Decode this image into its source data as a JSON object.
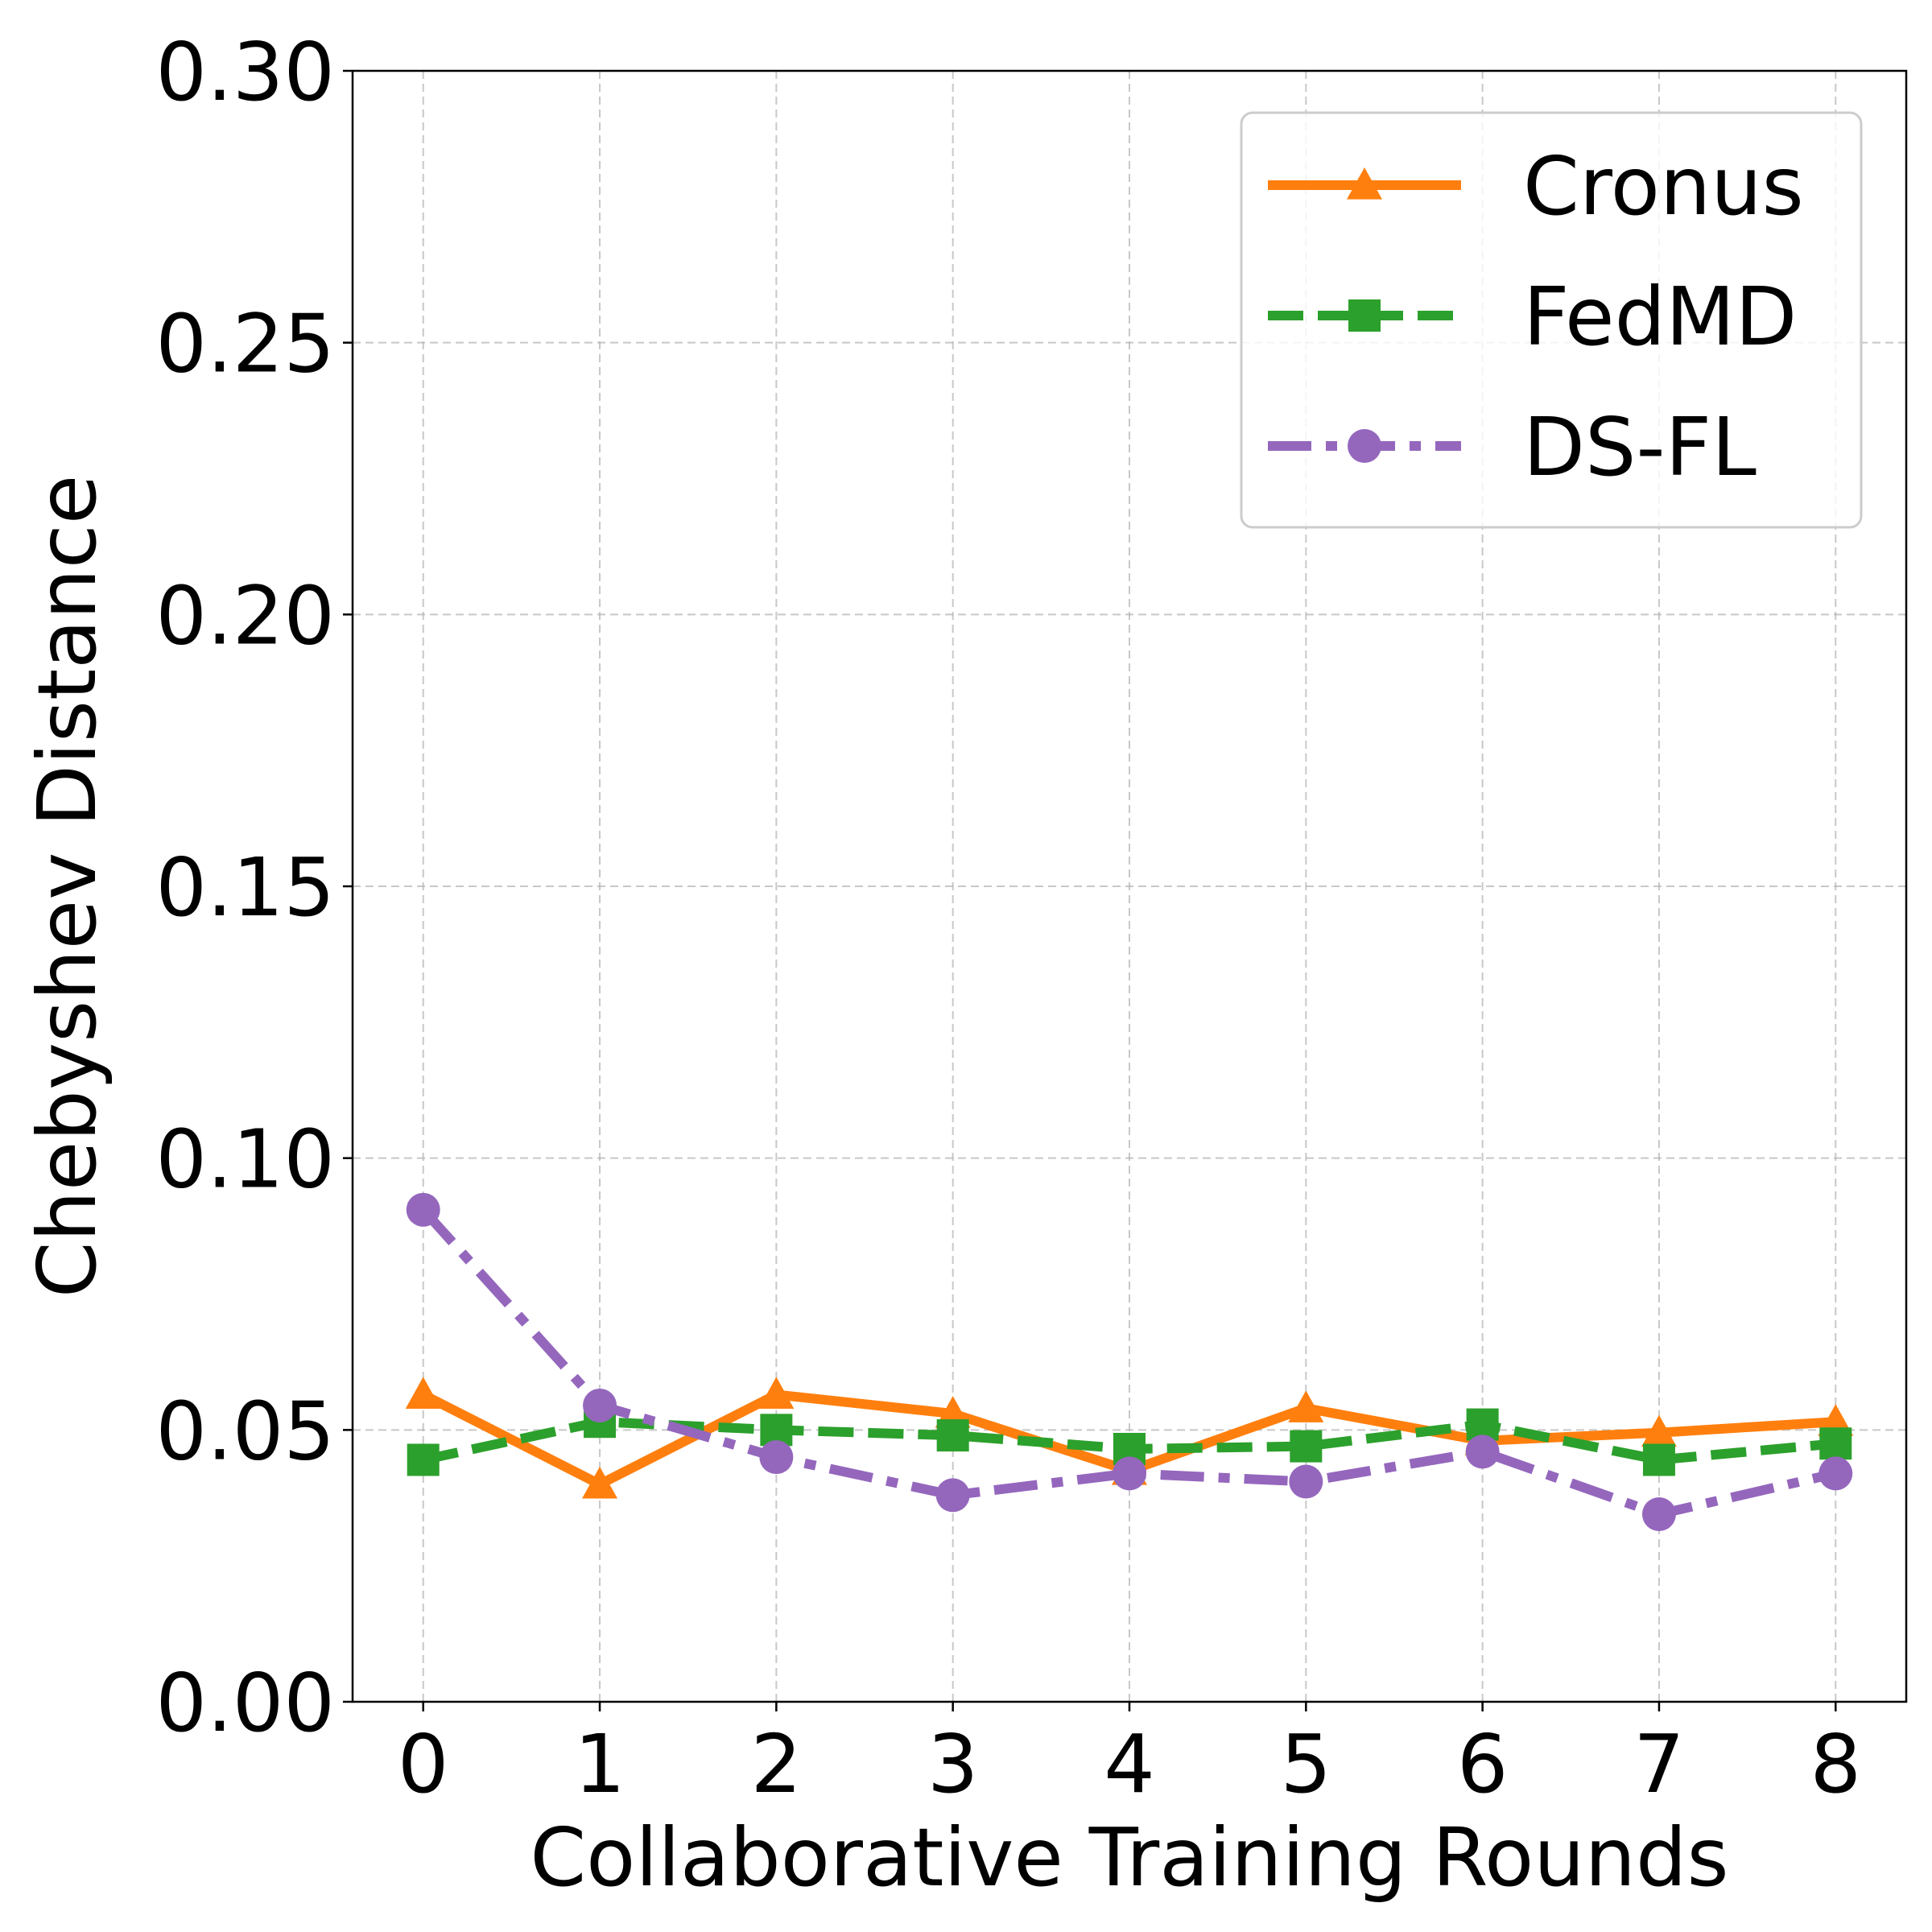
{
  "chart_data": {
    "type": "line",
    "xlabel": "Collaborative Training Rounds",
    "ylabel": "Chebyshev Distance",
    "x": [
      0,
      1,
      2,
      3,
      4,
      5,
      6,
      7,
      8
    ],
    "xlim": [
      -0.4,
      8.4
    ],
    "ylim": [
      0,
      0.3
    ],
    "xticks": [
      "0",
      "1",
      "2",
      "3",
      "4",
      "5",
      "6",
      "7",
      "8"
    ],
    "yticks": [
      "0.00",
      "0.05",
      "0.10",
      "0.15",
      "0.20",
      "0.25",
      "0.30"
    ],
    "grid": true,
    "legend_position": "top-right",
    "series": [
      {
        "name": "Cronus",
        "color": "#ff7f0e",
        "marker": "triangle",
        "linestyle": "solid",
        "values": [
          0.0565,
          0.04,
          0.0565,
          0.053,
          0.0425,
          0.054,
          0.048,
          0.0495,
          0.0515
        ]
      },
      {
        "name": "FedMD",
        "color": "#2ca02c",
        "marker": "square",
        "linestyle": "dashed",
        "values": [
          0.0445,
          0.0515,
          0.05,
          0.049,
          0.0465,
          0.047,
          0.051,
          0.0445,
          0.0475
        ]
      },
      {
        "name": "DS-FL",
        "color": "#9467bd",
        "marker": "circle",
        "linestyle": "dashdot",
        "values": [
          0.0905,
          0.0545,
          0.045,
          0.038,
          0.042,
          0.0405,
          0.046,
          0.0345,
          0.042
        ]
      }
    ]
  }
}
